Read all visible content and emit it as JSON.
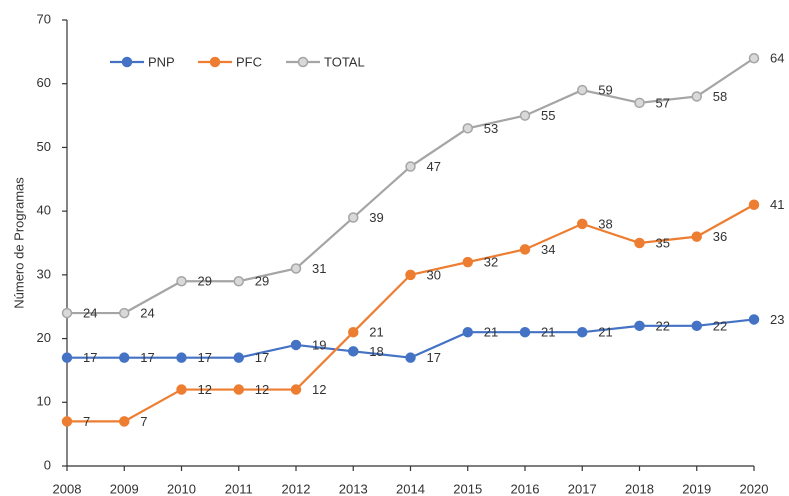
{
  "chart_data": {
    "type": "line",
    "y_label": "Número de Programas",
    "categories": [
      "2008",
      "2009",
      "2010",
      "2011",
      "2012",
      "2013",
      "2014",
      "2015",
      "2016",
      "2017",
      "2018",
      "2019",
      "2020"
    ],
    "series": [
      {
        "name": "PNP",
        "color": "#4472c4",
        "values": [
          17,
          17,
          17,
          17,
          19,
          18,
          17,
          21,
          21,
          21,
          22,
          22,
          23
        ]
      },
      {
        "name": "PFC",
        "color": "#ed7d31",
        "values": [
          7,
          7,
          12,
          12,
          12,
          21,
          30,
          32,
          34,
          38,
          35,
          36,
          41
        ]
      },
      {
        "name": "TOTAL",
        "color": "#a5a5a5",
        "values": [
          24,
          24,
          29,
          29,
          31,
          39,
          47,
          53,
          55,
          59,
          57,
          58,
          64
        ]
      }
    ],
    "ylim": [
      0,
      70
    ],
    "yticks": [
      0,
      10,
      20,
      30,
      40,
      50,
      60,
      70
    ],
    "grid": false,
    "legend": "top-left"
  }
}
